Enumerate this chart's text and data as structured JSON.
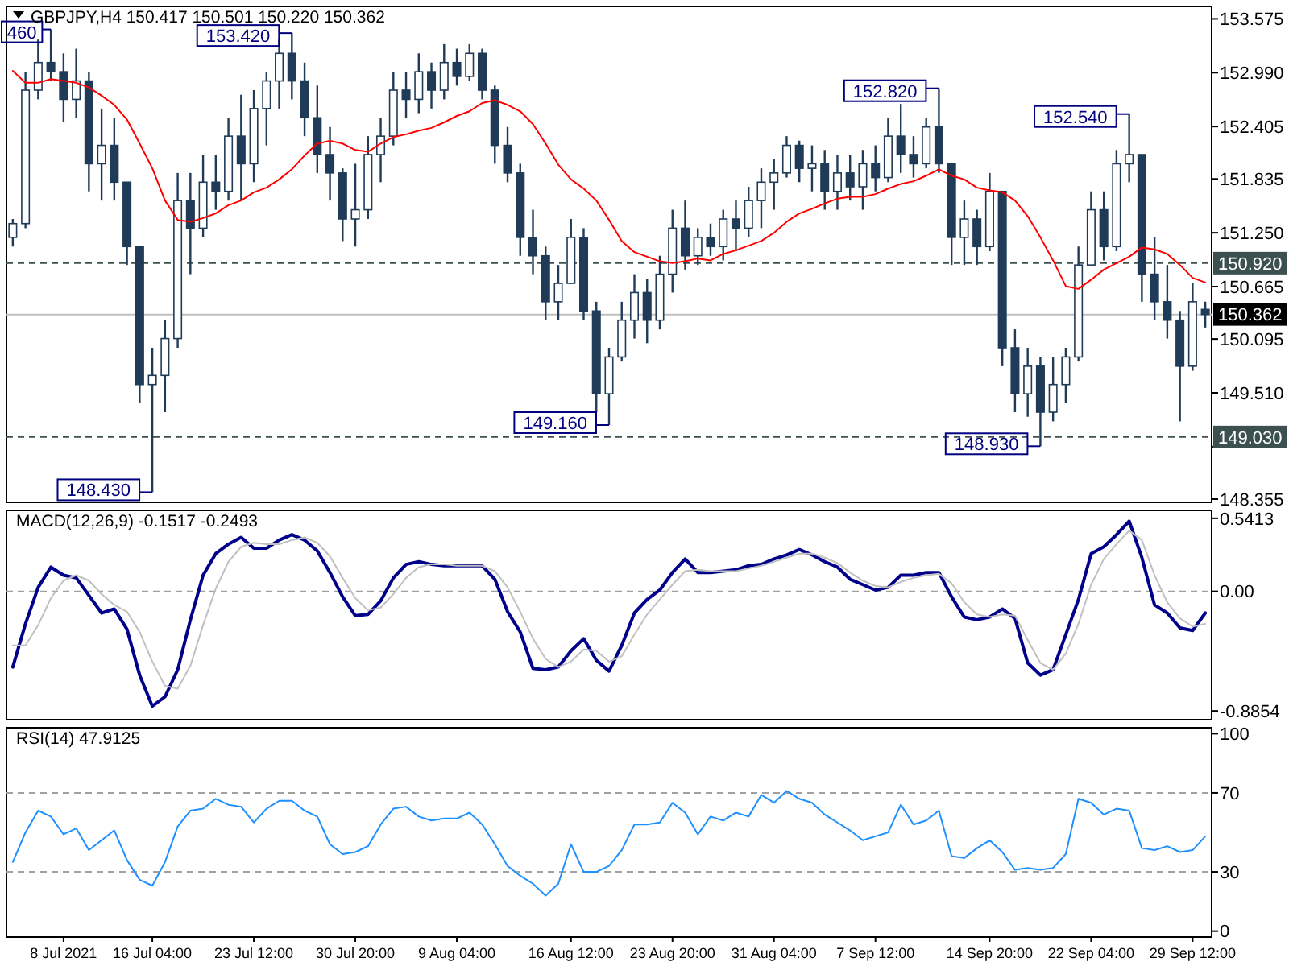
{
  "chart_data": [
    {
      "type": "candlestick",
      "title": "GBPJPY,H4  150.417 150.501 150.220 150.362",
      "color": "#1f3b57",
      "categories": [
        null,
        null,
        null,
        null,
        null,
        null,
        null,
        null,
        null,
        null,
        null,
        null,
        null,
        null,
        null,
        null,
        null,
        null,
        null,
        null,
        null,
        null,
        null,
        null,
        null,
        null,
        null,
        null,
        null,
        null,
        null,
        null,
        null,
        null,
        null,
        null,
        null,
        null,
        null,
        null,
        null,
        null,
        null,
        null,
        null,
        null,
        null,
        null,
        null,
        null,
        null,
        null,
        null,
        null,
        null,
        null,
        null,
        null,
        null,
        null,
        null,
        null,
        null,
        null,
        null,
        null,
        null,
        null,
        null,
        null,
        null,
        null,
        null,
        null,
        null,
        null,
        null,
        null,
        null,
        null,
        null,
        null,
        null,
        null,
        null,
        null,
        null,
        null,
        null,
        null,
        null,
        null,
        null,
        null,
        null
      ],
      "ohlc": [
        [
          151.2,
          151.4,
          151.1,
          151.35
        ],
        [
          151.35,
          153.0,
          151.3,
          152.8
        ],
        [
          152.8,
          153.35,
          152.7,
          153.1
        ],
        [
          153.1,
          153.46,
          152.9,
          153.0
        ],
        [
          153.0,
          153.2,
          152.45,
          152.7
        ],
        [
          152.7,
          153.25,
          152.5,
          152.9
        ],
        [
          152.9,
          153.0,
          151.7,
          152.0
        ],
        [
          152.0,
          152.6,
          151.6,
          152.2
        ],
        [
          152.2,
          152.5,
          151.6,
          151.8
        ],
        [
          151.8,
          151.8,
          150.9,
          151.1
        ],
        [
          151.1,
          151.1,
          149.4,
          149.6
        ],
        [
          149.6,
          150.0,
          148.43,
          149.7
        ],
        [
          149.7,
          150.3,
          149.3,
          150.1
        ],
        [
          150.1,
          151.9,
          150.0,
          151.6
        ],
        [
          151.6,
          151.9,
          150.8,
          151.3
        ],
        [
          151.3,
          152.1,
          151.2,
          151.8
        ],
        [
          151.8,
          152.1,
          151.5,
          151.7
        ],
        [
          151.7,
          152.5,
          151.6,
          152.3
        ],
        [
          152.3,
          152.75,
          151.6,
          152.0
        ],
        [
          152.0,
          152.8,
          151.8,
          152.6
        ],
        [
          152.6,
          153.0,
          152.2,
          152.9
        ],
        [
          152.9,
          153.35,
          152.6,
          153.2
        ],
        [
          153.2,
          153.42,
          152.7,
          152.9
        ],
        [
          152.9,
          153.1,
          152.3,
          152.5
        ],
        [
          152.5,
          152.85,
          151.9,
          152.1
        ],
        [
          152.1,
          152.4,
          151.6,
          151.9
        ],
        [
          151.9,
          151.95,
          151.16,
          151.4
        ],
        [
          151.4,
          152.0,
          151.1,
          151.5
        ],
        [
          151.5,
          152.3,
          151.4,
          152.1
        ],
        [
          152.1,
          152.5,
          151.8,
          152.3
        ],
        [
          152.3,
          153.0,
          152.2,
          152.8
        ],
        [
          152.8,
          153.0,
          152.5,
          152.7
        ],
        [
          152.7,
          153.2,
          152.55,
          153.0
        ],
        [
          153.0,
          153.1,
          152.6,
          152.8
        ],
        [
          152.8,
          153.3,
          152.7,
          153.1
        ],
        [
          153.1,
          153.25,
          152.85,
          152.95
        ],
        [
          152.95,
          153.3,
          152.9,
          153.2
        ],
        [
          153.2,
          153.25,
          152.7,
          152.8
        ],
        [
          152.8,
          152.85,
          152.0,
          152.2
        ],
        [
          152.2,
          152.4,
          151.8,
          151.9
        ],
        [
          151.9,
          152.0,
          151.0,
          151.2
        ],
        [
          151.2,
          151.5,
          150.8,
          151.0
        ],
        [
          151.0,
          151.1,
          150.3,
          150.5
        ],
        [
          150.5,
          150.9,
          150.3,
          150.7
        ],
        [
          150.7,
          151.4,
          150.7,
          151.2
        ],
        [
          151.2,
          151.3,
          150.3,
          150.4
        ],
        [
          150.4,
          150.5,
          149.3,
          149.5
        ],
        [
          149.5,
          150.0,
          149.16,
          149.9
        ],
        [
          149.9,
          150.5,
          149.85,
          150.3
        ],
        [
          150.3,
          150.8,
          150.1,
          150.6
        ],
        [
          150.6,
          150.75,
          150.05,
          150.3
        ],
        [
          150.3,
          151.0,
          150.2,
          150.8
        ],
        [
          150.8,
          151.5,
          150.6,
          151.3
        ],
        [
          151.3,
          151.6,
          150.85,
          151.0
        ],
        [
          151.0,
          151.3,
          150.9,
          151.2
        ],
        [
          151.2,
          151.35,
          151.0,
          151.1
        ],
        [
          151.1,
          151.5,
          150.95,
          151.4
        ],
        [
          151.4,
          151.6,
          151.05,
          151.3
        ],
        [
          151.3,
          151.75,
          151.2,
          151.6
        ],
        [
          151.6,
          151.95,
          151.3,
          151.8
        ],
        [
          151.8,
          152.05,
          151.5,
          151.9
        ],
        [
          151.9,
          152.3,
          151.85,
          152.2
        ],
        [
          152.2,
          152.25,
          151.8,
          151.95
        ],
        [
          151.95,
          152.2,
          151.7,
          152.0
        ],
        [
          152.0,
          152.15,
          151.5,
          151.7
        ],
        [
          151.7,
          152.1,
          151.5,
          151.9
        ],
        [
          151.9,
          152.1,
          151.6,
          151.75
        ],
        [
          151.75,
          152.15,
          151.5,
          152.0
        ],
        [
          152.0,
          152.2,
          151.7,
          151.85
        ],
        [
          151.85,
          152.5,
          151.8,
          152.3
        ],
        [
          152.3,
          152.65,
          151.9,
          152.1
        ],
        [
          152.1,
          152.3,
          151.85,
          152.0
        ],
        [
          152.0,
          152.5,
          151.95,
          152.4
        ],
        [
          152.4,
          152.82,
          151.9,
          152.0
        ],
        [
          152.0,
          152.0,
          150.9,
          151.2
        ],
        [
          151.2,
          151.6,
          150.9,
          151.4
        ],
        [
          151.4,
          151.5,
          150.9,
          151.1
        ],
        [
          151.1,
          151.9,
          151.05,
          151.7
        ],
        [
          151.7,
          151.7,
          149.8,
          150.0
        ],
        [
          150.0,
          150.2,
          149.3,
          149.5
        ],
        [
          149.5,
          150.0,
          149.25,
          149.8
        ],
        [
          149.8,
          149.9,
          148.93,
          149.3
        ],
        [
          149.3,
          149.9,
          149.2,
          149.6
        ],
        [
          149.6,
          150.0,
          149.4,
          149.9
        ],
        [
          149.9,
          151.1,
          149.85,
          150.9
        ],
        [
          150.9,
          151.7,
          150.9,
          151.5
        ],
        [
          151.5,
          151.7,
          150.95,
          151.1
        ],
        [
          151.1,
          152.15,
          151.05,
          152.0
        ],
        [
          152.0,
          152.54,
          151.8,
          152.1
        ],
        [
          152.1,
          152.1,
          150.5,
          150.8
        ],
        [
          150.8,
          151.2,
          150.3,
          150.5
        ],
        [
          150.5,
          150.9,
          150.1,
          150.3
        ],
        [
          150.3,
          150.4,
          149.2,
          149.8
        ],
        [
          149.8,
          150.7,
          149.75,
          150.5
        ],
        [
          150.417,
          150.501,
          150.22,
          150.362
        ]
      ],
      "series": [
        {
          "type": "line",
          "color": "#ff0000",
          "values": [
            153.01,
            152.88,
            152.88,
            152.92,
            152.9,
            152.88,
            152.83,
            152.74,
            152.64,
            152.48,
            152.22,
            151.95,
            151.6,
            151.39,
            151.37,
            151.41,
            151.46,
            151.55,
            151.6,
            151.69,
            151.74,
            151.83,
            151.94,
            152.09,
            152.22,
            152.25,
            152.22,
            152.15,
            152.13,
            152.22,
            152.29,
            152.32,
            152.36,
            152.39,
            152.45,
            152.52,
            152.57,
            152.66,
            152.69,
            152.64,
            152.57,
            152.43,
            152.22,
            151.99,
            151.83,
            151.73,
            151.6,
            151.39,
            151.16,
            151.04,
            150.99,
            150.94,
            150.92,
            150.94,
            150.97,
            150.95,
            151.02,
            151.06,
            151.11,
            151.16,
            151.25,
            151.37,
            151.46,
            151.51,
            151.57,
            151.62,
            151.64,
            151.64,
            151.67,
            151.73,
            151.78,
            151.81,
            151.87,
            151.94,
            151.87,
            151.83,
            151.74,
            151.71,
            151.69,
            151.6,
            151.43,
            151.2,
            150.95,
            150.67,
            150.64,
            150.74,
            150.85,
            150.92,
            150.99,
            151.09,
            151.07,
            151.02,
            150.9,
            150.76,
            150.71
          ]
        }
      ],
      "ylim": [
        148.32,
        153.71
      ],
      "yticks": [
        {
          "value": 153.575,
          "label": "153.575"
        },
        {
          "value": 152.99,
          "label": "152.990"
        },
        {
          "value": 152.405,
          "label": "152.405"
        },
        {
          "value": 151.835,
          "label": "151.835"
        },
        {
          "value": 151.25,
          "label": "151.250"
        },
        {
          "value": 150.665,
          "label": "150.665"
        },
        {
          "value": 150.095,
          "label": "150.095"
        },
        {
          "value": 149.51,
          "label": "149.510"
        },
        {
          "value": 148.925,
          "label": null
        },
        {
          "value": 148.355,
          "label": "148.355"
        }
      ],
      "ref_lines": [
        {
          "axis": "y",
          "value": 150.92,
          "label": "150.920",
          "color": "#3c5050",
          "line_style": "dashed"
        },
        {
          "axis": "y",
          "value": 149.03,
          "label": "149.030",
          "color": "#3c5050",
          "line_style": "dashed"
        },
        {
          "axis": "y",
          "value": 150.362,
          "label": "150.362",
          "color": "#c0c0c0",
          "line_style": "solid"
        }
      ],
      "value_labels": [
        null,
        null,
        null,
        "460",
        null,
        null,
        null,
        null,
        null,
        null,
        null,
        "148.430",
        null,
        null,
        null,
        null,
        null,
        null,
        null,
        null,
        null,
        null,
        "153.420",
        null,
        null,
        null,
        null,
        null,
        null,
        null,
        null,
        null,
        null,
        null,
        null,
        null,
        null,
        null,
        null,
        null,
        null,
        null,
        null,
        null,
        null,
        null,
        null,
        "149.160",
        null,
        null,
        null,
        null,
        null,
        null,
        null,
        null,
        null,
        null,
        null,
        null,
        null,
        null,
        null,
        null,
        null,
        null,
        null,
        null,
        null,
        null,
        null,
        null,
        null,
        "152.820",
        null,
        null,
        null,
        null,
        null,
        null,
        null,
        "148.930",
        null,
        null,
        null,
        null,
        null,
        null,
        "152.540",
        null,
        null,
        null,
        null,
        null,
        null
      ],
      "tick_labels": "y"
    },
    {
      "type": "line",
      "title": "MACD(12,26,9) -0.1517 -0.2493",
      "categories": [
        null,
        null,
        null,
        null,
        null,
        null,
        null,
        null,
        null,
        null,
        null,
        null,
        null,
        null,
        null,
        null,
        null,
        null,
        null,
        null,
        null,
        null,
        null,
        null,
        null,
        null,
        null,
        null,
        null,
        null,
        null,
        null,
        null,
        null,
        null,
        null,
        null,
        null,
        null,
        null,
        null,
        null,
        null,
        null,
        null,
        null,
        null,
        null,
        null,
        null,
        null,
        null,
        null,
        null,
        null,
        null,
        null,
        null,
        null,
        null,
        null,
        null,
        null,
        null,
        null,
        null,
        null,
        null,
        null,
        null,
        null,
        null,
        null,
        null,
        null,
        null,
        null,
        null,
        null,
        null,
        null,
        null,
        null,
        null,
        null,
        null,
        null,
        null,
        null,
        null,
        null,
        null,
        null,
        null,
        null
      ],
      "series": [
        {
          "color": "#00008b",
          "values": [
            -0.56,
            -0.24,
            0.03,
            0.18,
            0.12,
            0.1,
            -0.03,
            -0.16,
            -0.13,
            -0.28,
            -0.62,
            -0.85,
            -0.78,
            -0.58,
            -0.21,
            0.12,
            0.28,
            0.35,
            0.4,
            0.32,
            0.32,
            0.38,
            0.42,
            0.38,
            0.3,
            0.14,
            -0.04,
            -0.18,
            -0.17,
            -0.07,
            0.1,
            0.2,
            0.22,
            0.2,
            0.19,
            0.19,
            0.19,
            0.19,
            0.09,
            -0.15,
            -0.3,
            -0.57,
            -0.58,
            -0.56,
            -0.44,
            -0.35,
            -0.51,
            -0.59,
            -0.4,
            -0.16,
            -0.06,
            0.01,
            0.14,
            0.24,
            0.14,
            0.14,
            0.15,
            0.16,
            0.19,
            0.2,
            0.24,
            0.27,
            0.31,
            0.27,
            0.22,
            0.18,
            0.09,
            0.05,
            0.01,
            0.03,
            0.12,
            0.12,
            0.14,
            0.14,
            -0.04,
            -0.19,
            -0.21,
            -0.19,
            -0.13,
            -0.2,
            -0.53,
            -0.62,
            -0.58,
            -0.32,
            -0.06,
            0.28,
            0.33,
            0.42,
            0.52,
            0.25,
            -0.1,
            -0.16,
            -0.27,
            -0.29,
            -0.16
          ]
        },
        {
          "color": "#c0c0c0",
          "values": [
            -0.4,
            -0.4,
            -0.25,
            -0.05,
            0.08,
            0.12,
            0.08,
            -0.02,
            -0.1,
            -0.15,
            -0.3,
            -0.52,
            -0.7,
            -0.72,
            -0.55,
            -0.25,
            0.02,
            0.22,
            0.33,
            0.36,
            0.35,
            0.35,
            0.38,
            0.4,
            0.36,
            0.26,
            0.1,
            -0.05,
            -0.14,
            -0.12,
            -0.02,
            0.1,
            0.18,
            0.2,
            0.2,
            0.19,
            0.19,
            0.19,
            0.15,
            0.03,
            -0.15,
            -0.35,
            -0.5,
            -0.56,
            -0.52,
            -0.43,
            -0.44,
            -0.52,
            -0.48,
            -0.32,
            -0.17,
            -0.06,
            0.05,
            0.15,
            0.16,
            0.15,
            0.15,
            0.15,
            0.17,
            0.19,
            0.22,
            0.25,
            0.28,
            0.28,
            0.25,
            0.21,
            0.14,
            0.08,
            0.04,
            0.03,
            0.07,
            0.1,
            0.12,
            0.13,
            0.06,
            -0.08,
            -0.17,
            -0.19,
            -0.17,
            -0.18,
            -0.36,
            -0.53,
            -0.58,
            -0.46,
            -0.24,
            0.05,
            0.24,
            0.35,
            0.45,
            0.38,
            0.12,
            -0.08,
            -0.2,
            -0.26,
            -0.24
          ]
        }
      ],
      "ylim": [
        -0.95,
        0.6
      ],
      "yticks": [
        {
          "value": 0.5413,
          "label": "0.5413"
        },
        {
          "value": 0,
          "label": "0.00"
        },
        {
          "value": -0.8854,
          "label": "-0.8854"
        }
      ],
      "ref_lines": [
        {
          "axis": "y",
          "value": 0,
          "color": "#a0a0a0",
          "line_style": "dashed"
        }
      ],
      "tick_labels": "y"
    },
    {
      "type": "line",
      "title": "RSI(14) 47.9125",
      "categories": [
        null,
        null,
        null,
        null,
        "8 Jul 2021",
        null,
        null,
        null,
        null,
        null,
        null,
        "16 Jul 04:00",
        null,
        null,
        null,
        null,
        null,
        null,
        null,
        "23 Jul 12:00",
        null,
        null,
        null,
        null,
        null,
        null,
        null,
        "30 Jul 20:00",
        null,
        null,
        null,
        null,
        null,
        null,
        null,
        "9 Aug 04:00",
        null,
        null,
        null,
        null,
        null,
        null,
        null,
        null,
        "16 Aug 12:00",
        null,
        null,
        null,
        null,
        null,
        null,
        null,
        "23 Aug 20:00",
        null,
        null,
        null,
        null,
        null,
        null,
        null,
        "31 Aug 04:00",
        null,
        null,
        null,
        null,
        null,
        null,
        null,
        "7 Sep 12:00",
        null,
        null,
        null,
        null,
        null,
        null,
        null,
        null,
        "14 Sep 20:00",
        null,
        null,
        null,
        null,
        null,
        null,
        null,
        "22 Sep 04:00",
        null,
        null,
        null,
        null,
        null,
        null,
        null,
        "29 Sep 12:00",
        null
      ],
      "series": [
        {
          "color": "#1e90ff",
          "values": [
            35,
            50,
            61,
            58,
            49,
            52,
            41,
            46,
            51,
            36,
            26,
            23,
            35,
            53,
            61,
            62,
            67,
            64,
            63,
            55,
            62,
            66,
            66,
            61,
            58,
            44,
            39,
            40,
            43,
            54,
            62,
            63,
            58,
            56,
            57,
            57,
            60,
            54,
            44,
            33,
            28,
            24,
            18,
            24,
            44,
            30,
            30,
            33,
            41,
            54,
            54,
            55,
            65,
            60,
            49,
            58,
            56,
            60,
            58,
            69,
            65,
            71,
            67,
            65,
            59,
            55,
            51,
            46,
            48,
            50,
            64,
            54,
            56,
            61,
            38,
            37,
            42,
            46,
            40,
            31,
            32,
            31,
            32,
            39,
            67,
            65,
            59,
            62,
            61,
            42,
            41,
            43,
            40,
            41,
            48
          ]
        }
      ],
      "ylim": [
        -3,
        103
      ],
      "yticks": [
        100,
        70,
        30,
        0
      ],
      "ref_lines": [
        {
          "axis": "y",
          "value": 70,
          "color": "#a0a0a0",
          "line_style": "dashed"
        },
        {
          "axis": "y",
          "value": 30,
          "color": "#a0a0a0",
          "line_style": "dashed"
        }
      ]
    }
  ]
}
